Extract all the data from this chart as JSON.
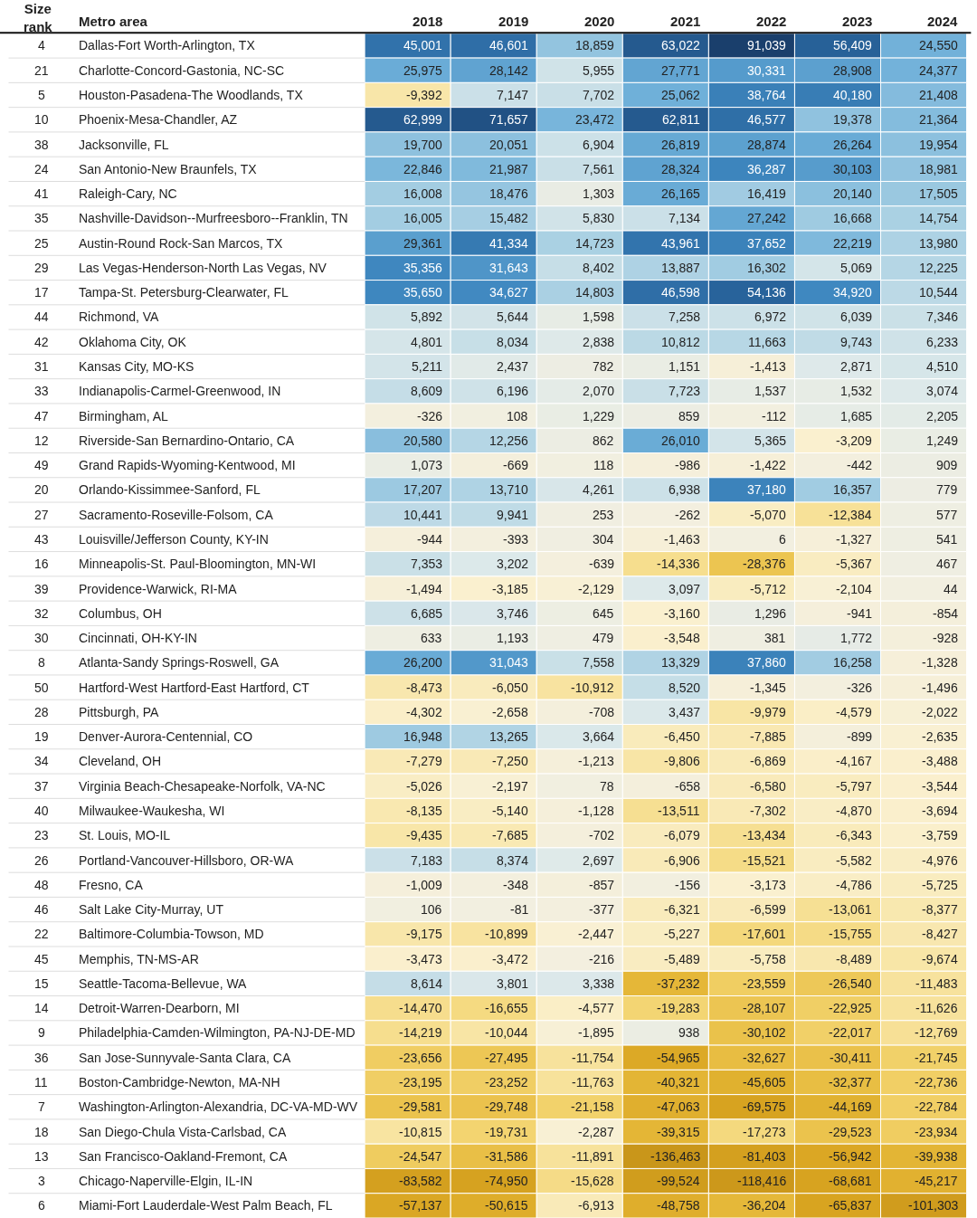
{
  "chart_data": {
    "type": "heatmap",
    "y2label": "Size rank",
    "ylabel": "Metro area",
    "categories": [
      "2018",
      "2019",
      "2020",
      "2021",
      "2022",
      "2023",
      "2024"
    ],
    "y_categories": [
      "Dallas-Fort Worth-Arlington, TX",
      "Charlotte-Concord-Gastonia, NC-SC",
      "Houston-Pasadena-The Woodlands, TX",
      "Phoenix-Mesa-Chandler, AZ",
      "Jacksonville, FL",
      "San Antonio-New Braunfels, TX",
      "Raleigh-Cary, NC",
      "Nashville-Davidson--Murfreesboro--Franklin, TN",
      "Austin-Round Rock-San Marcos, TX",
      "Las Vegas-Henderson-North Las Vegas, NV",
      "Tampa-St. Petersburg-Clearwater, FL",
      "Richmond, VA",
      "Oklahoma City, OK",
      "Kansas City, MO-KS",
      "Indianapolis-Carmel-Greenwood, IN",
      "Birmingham, AL",
      "Riverside-San Bernardino-Ontario, CA",
      "Grand Rapids-Wyoming-Kentwood, MI",
      "Orlando-Kissimmee-Sanford, FL",
      "Sacramento-Roseville-Folsom, CA",
      "Louisville/Jefferson County, KY-IN",
      "Minneapolis-St. Paul-Bloomington, MN-WI",
      "Providence-Warwick, RI-MA",
      "Columbus, OH",
      "Cincinnati, OH-KY-IN",
      "Atlanta-Sandy Springs-Roswell, GA",
      "Hartford-West Hartford-East Hartford, CT",
      "Pittsburgh, PA",
      "Denver-Aurora-Centennial, CO",
      "Cleveland, OH",
      "Virginia Beach-Chesapeake-Norfolk, VA-NC",
      "Milwaukee-Waukesha, WI",
      "St. Louis, MO-IL",
      "Portland-Vancouver-Hillsboro, OR-WA",
      "Fresno, CA",
      "Salt Lake City-Murray, UT",
      "Baltimore-Columbia-Towson, MD",
      "Memphis, TN-MS-AR",
      "Seattle-Tacoma-Bellevue, WA",
      "Detroit-Warren-Dearborn, MI",
      "Philadelphia-Camden-Wilmington, PA-NJ-DE-MD",
      "San Jose-Sunnyvale-Santa Clara, CA",
      "Boston-Cambridge-Newton, MA-NH",
      "Washington-Arlington-Alexandria, DC-VA-MD-WV",
      "San Diego-Chula Vista-Carlsbad, CA",
      "San Francisco-Oakland-Fremont, CA",
      "Chicago-Naperville-Elgin, IL-IN",
      "Miami-Fort Lauderdale-West Palm Beach, FL"
    ],
    "y2_categories": [
      "4",
      "21",
      "5",
      "10",
      "38",
      "24",
      "41",
      "35",
      "25",
      "29",
      "17",
      "44",
      "42",
      "31",
      "33",
      "47",
      "12",
      "49",
      "20",
      "27",
      "43",
      "16",
      "39",
      "32",
      "30",
      "8",
      "50",
      "28",
      "19",
      "34",
      "37",
      "40",
      "23",
      "26",
      "48",
      "46",
      "22",
      "45",
      "15",
      "14",
      "9",
      "36",
      "11",
      "7",
      "18",
      "13",
      "3",
      "6"
    ],
    "cells": [
      [
        45001,
        46601,
        18859,
        63022,
        91039,
        56409,
        24550
      ],
      [
        25975,
        28142,
        5955,
        27771,
        30331,
        28908,
        24377
      ],
      [
        -9392,
        7147,
        7702,
        25062,
        38764,
        40180,
        21408
      ],
      [
        62999,
        71657,
        23472,
        62811,
        46577,
        19378,
        21364
      ],
      [
        19700,
        20051,
        6904,
        26819,
        28874,
        26264,
        19954
      ],
      [
        22846,
        21987,
        7561,
        28324,
        36287,
        30103,
        18981
      ],
      [
        16008,
        18476,
        1303,
        26165,
        16419,
        20140,
        17505
      ],
      [
        16005,
        15482,
        5830,
        7134,
        27242,
        16668,
        14754
      ],
      [
        29361,
        41334,
        14723,
        43961,
        37652,
        22219,
        13980
      ],
      [
        35356,
        31643,
        8402,
        13887,
        16302,
        5069,
        12225
      ],
      [
        35650,
        34627,
        14803,
        46598,
        54136,
        34920,
        10544
      ],
      [
        5892,
        5644,
        1598,
        7258,
        6972,
        6039,
        7346
      ],
      [
        4801,
        8034,
        2838,
        10812,
        11663,
        9743,
        6233
      ],
      [
        5211,
        2437,
        782,
        1151,
        -1413,
        2871,
        4510
      ],
      [
        8609,
        6196,
        2070,
        7723,
        1537,
        1532,
        3074
      ],
      [
        -326,
        108,
        1229,
        859,
        -112,
        1685,
        2205
      ],
      [
        20580,
        12256,
        862,
        26010,
        5365,
        -3209,
        1249
      ],
      [
        1073,
        -669,
        118,
        -986,
        -1422,
        -442,
        909
      ],
      [
        17207,
        13710,
        4261,
        6938,
        37180,
        16357,
        779
      ],
      [
        10441,
        9941,
        253,
        -262,
        -5070,
        -12384,
        577
      ],
      [
        -944,
        -393,
        304,
        -1463,
        6,
        -1327,
        541
      ],
      [
        7353,
        3202,
        -639,
        -14336,
        -28376,
        -5367,
        467
      ],
      [
        -1494,
        -3185,
        -2129,
        3097,
        -5712,
        -2104,
        44
      ],
      [
        6685,
        3746,
        645,
        -3160,
        1296,
        -941,
        -854
      ],
      [
        633,
        1193,
        479,
        -3548,
        381,
        1772,
        -928
      ],
      [
        26200,
        31043,
        7558,
        13329,
        37860,
        16258,
        -1328
      ],
      [
        -8473,
        -6050,
        -10912,
        8520,
        -1345,
        -326,
        -1496
      ],
      [
        -4302,
        -2658,
        -708,
        3437,
        -9979,
        -4579,
        -2022
      ],
      [
        16948,
        13265,
        3664,
        -6450,
        -7885,
        -899,
        -2635
      ],
      [
        -7279,
        -7250,
        -1213,
        -9806,
        -6869,
        -4167,
        -3488
      ],
      [
        -5026,
        -2197,
        78,
        -658,
        -6580,
        -5797,
        -3544
      ],
      [
        -8135,
        -5140,
        -1128,
        -13511,
        -7302,
        -4870,
        -3694
      ],
      [
        -9435,
        -7685,
        -702,
        -6079,
        -13434,
        -6343,
        -3759
      ],
      [
        7183,
        8374,
        2697,
        -6906,
        -15521,
        -5582,
        -4976
      ],
      [
        -1009,
        -348,
        -857,
        -156,
        -3173,
        -4786,
        -5725
      ],
      [
        106,
        -81,
        -377,
        -6321,
        -6599,
        -13061,
        -8377
      ],
      [
        -9175,
        -10899,
        -2447,
        -5227,
        -17601,
        -15755,
        -8427
      ],
      [
        -3473,
        -3472,
        -216,
        -5489,
        -5758,
        -8489,
        -9674
      ],
      [
        8614,
        3801,
        3338,
        -37232,
        -23559,
        -26540,
        -11483
      ],
      [
        -14470,
        -16655,
        -4577,
        -19283,
        -28107,
        -22925,
        -11626
      ],
      [
        -14219,
        -10044,
        -1895,
        938,
        -30102,
        -22017,
        -12769
      ],
      [
        -23656,
        -27495,
        -11754,
        -54965,
        -32627,
        -30411,
        -21745
      ],
      [
        -23195,
        -23252,
        -11763,
        -40321,
        -45605,
        -32377,
        -22736
      ],
      [
        -29581,
        -29748,
        -21158,
        -47063,
        -69575,
        -44169,
        -22784
      ],
      [
        -10815,
        -19731,
        -2287,
        -39315,
        -17273,
        -29523,
        -23934
      ],
      [
        -24547,
        -31586,
        -11891,
        -136463,
        -81403,
        -56942,
        -39938
      ],
      [
        -83582,
        -74950,
        -15628,
        -99524,
        -118416,
        -68681,
        -45217
      ],
      [
        -57137,
        -50615,
        -6913,
        -48758,
        -36204,
        -65837,
        -101303
      ]
    ],
    "cell_labels": [
      [
        "45,001",
        "46,601",
        "18,859",
        "63,022",
        "91,039",
        "56,409",
        "24,550"
      ],
      [
        "25,975",
        "28,142",
        "5,955",
        "27,771",
        "30,331",
        "28,908",
        "24,377"
      ],
      [
        "-9,392",
        "7,147",
        "7,702",
        "25,062",
        "38,764",
        "40,180",
        "21,408"
      ],
      [
        "62,999",
        "71,657",
        "23,472",
        "62,811",
        "46,577",
        "19,378",
        "21,364"
      ],
      [
        "19,700",
        "20,051",
        "6,904",
        "26,819",
        "28,874",
        "26,264",
        "19,954"
      ],
      [
        "22,846",
        "21,987",
        "7,561",
        "28,324",
        "36,287",
        "30,103",
        "18,981"
      ],
      [
        "16,008",
        "18,476",
        "1,303",
        "26,165",
        "16,419",
        "20,140",
        "17,505"
      ],
      [
        "16,005",
        "15,482",
        "5,830",
        "7,134",
        "27,242",
        "16,668",
        "14,754"
      ],
      [
        "29,361",
        "41,334",
        "14,723",
        "43,961",
        "37,652",
        "22,219",
        "13,980"
      ],
      [
        "35,356",
        "31,643",
        "8,402",
        "13,887",
        "16,302",
        "5,069",
        "12,225"
      ],
      [
        "35,650",
        "34,627",
        "14,803",
        "46,598",
        "54,136",
        "34,920",
        "10,544"
      ],
      [
        "5,892",
        "5,644",
        "1,598",
        "7,258",
        "6,972",
        "6,039",
        "7,346"
      ],
      [
        "4,801",
        "8,034",
        "2,838",
        "10,812",
        "11,663",
        "9,743",
        "6,233"
      ],
      [
        "5,211",
        "2,437",
        "782",
        "1,151",
        "-1,413",
        "2,871",
        "4,510"
      ],
      [
        "8,609",
        "6,196",
        "2,070",
        "7,723",
        "1,537",
        "1,532",
        "3,074"
      ],
      [
        "-326",
        "108",
        "1,229",
        "859",
        "-112",
        "1,685",
        "2,205"
      ],
      [
        "20,580",
        "12,256",
        "862",
        "26,010",
        "5,365",
        "-3,209",
        "1,249"
      ],
      [
        "1,073",
        "-669",
        "118",
        "-986",
        "-1,422",
        "-442",
        "909"
      ],
      [
        "17,207",
        "13,710",
        "4,261",
        "6,938",
        "37,180",
        "16,357",
        "779"
      ],
      [
        "10,441",
        "9,941",
        "253",
        "-262",
        "-5,070",
        "-12,384",
        "577"
      ],
      [
        "-944",
        "-393",
        "304",
        "-1,463",
        "6",
        "-1,327",
        "541"
      ],
      [
        "7,353",
        "3,202",
        "-639",
        "-14,336",
        "-28,376",
        "-5,367",
        "467"
      ],
      [
        "-1,494",
        "-3,185",
        "-2,129",
        "3,097",
        "-5,712",
        "-2,104",
        "44"
      ],
      [
        "6,685",
        "3,746",
        "645",
        "-3,160",
        "1,296",
        "-941",
        "-854"
      ],
      [
        "633",
        "1,193",
        "479",
        "-3,548",
        "381",
        "1,772",
        "-928"
      ],
      [
        "26,200",
        "31,043",
        "7,558",
        "13,329",
        "37,860",
        "16,258",
        "-1,328"
      ],
      [
        "-8,473",
        "-6,050",
        "-10,912",
        "8,520",
        "-1,345",
        "-326",
        "-1,496"
      ],
      [
        "-4,302",
        "-2,658",
        "-708",
        "3,437",
        "-9,979",
        "-4,579",
        "-2,022"
      ],
      [
        "16,948",
        "13,265",
        "3,664",
        "-6,450",
        "-7,885",
        "-899",
        "-2,635"
      ],
      [
        "-7,279",
        "-7,250",
        "-1,213",
        "-9,806",
        "-6,869",
        "-4,167",
        "-3,488"
      ],
      [
        "-5,026",
        "-2,197",
        "78",
        "-658",
        "-6,580",
        "-5,797",
        "-3,544"
      ],
      [
        "-8,135",
        "-5,140",
        "-1,128",
        "-13,511",
        "-7,302",
        "-4,870",
        "-3,694"
      ],
      [
        "-9,435",
        "-7,685",
        "-702",
        "-6,079",
        "-13,434",
        "-6,343",
        "-3,759"
      ],
      [
        "7,183",
        "8,374",
        "2,697",
        "-6,906",
        "-15,521",
        "-5,582",
        "-4,976"
      ],
      [
        "-1,009",
        "-348",
        "-857",
        "-156",
        "-3,173",
        "-4,786",
        "-5,725"
      ],
      [
        "106",
        "-81",
        "-377",
        "-6,321",
        "-6,599",
        "-13,061",
        "-8,377"
      ],
      [
        "-9,175",
        "-10,899",
        "-2,447",
        "-5,227",
        "-17,601",
        "-15,755",
        "-8,427"
      ],
      [
        "-3,473",
        "-3,472",
        "-216",
        "-5,489",
        "-5,758",
        "-8,489",
        "-9,674"
      ],
      [
        "8,614",
        "3,801",
        "3,338",
        "-37,232",
        "-23,559",
        "-26,540",
        "-11,483"
      ],
      [
        "-14,470",
        "-16,655",
        "-4,577",
        "-19,283",
        "-28,107",
        "-22,925",
        "-11,626"
      ],
      [
        "-14,219",
        "-10,044",
        "-1,895",
        "938",
        "-30,102",
        "-22,017",
        "-12,769"
      ],
      [
        "-23,656",
        "-27,495",
        "-11,754",
        "-54,965",
        "-32,627",
        "-30,411",
        "-21,745"
      ],
      [
        "-23,195",
        "-23,252",
        "-11,763",
        "-40,321",
        "-45,605",
        "-32,377",
        "-22,736"
      ],
      [
        "-29,581",
        "-29,748",
        "-21,158",
        "-47,063",
        "-69,575",
        "-44,169",
        "-22,784"
      ],
      [
        "-10,815",
        "-19,731",
        "-2,287",
        "-39,315",
        "-17,273",
        "-29,523",
        "-23,934"
      ],
      [
        "-24,547",
        "-31,586",
        "-11,891",
        "-136,463",
        "-81,403",
        "-56,942",
        "-39,938"
      ],
      [
        "-83,582",
        "-74,950",
        "-15,628",
        "-99,524",
        "-118,416",
        "-68,681",
        "-45,217"
      ],
      [
        "-57,137",
        "-50,615",
        "-6,913",
        "-48,758",
        "-36,204",
        "-65,837",
        "-101,303"
      ]
    ]
  }
}
